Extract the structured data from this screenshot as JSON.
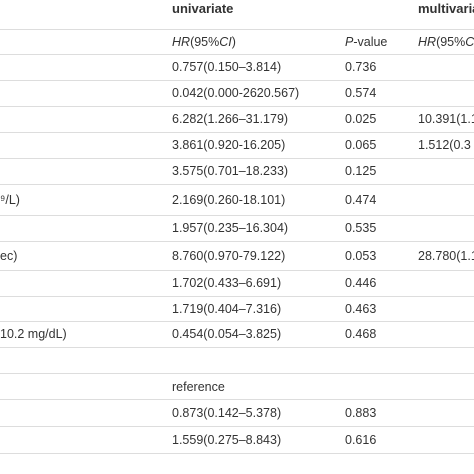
{
  "header": {
    "univariate": "univariate",
    "multivariate": "multivaria"
  },
  "subheader": {
    "hr_prefix": "HR",
    "hr_mid": "(95%",
    "hr_ci": "CI",
    "hr_end": ")",
    "p_italic": "P",
    "p_rest": "-value",
    "mhr_prefix": "HR",
    "mhr_mid": "(95%",
    "mhr_ci": "C"
  },
  "rows": [
    {
      "label": "",
      "hr": "0.757(0.150–3.814)",
      "p": "0.736",
      "mhr": ""
    },
    {
      "label": "",
      "hr": "0.042(0.000-2620.567)",
      "p": "0.574",
      "mhr": ""
    },
    {
      "label": "",
      "hr": "6.282(1.266–31.179)",
      "p": "0.025",
      "mhr": "10.391(1.1"
    },
    {
      "label": "",
      "hr": "3.861(0.920-16.205)",
      "p": "0.065",
      "mhr": "1.512(0.3"
    },
    {
      "label": "",
      "hr": "3.575(0.701–18.233)",
      "p": "0.125",
      "mhr": ""
    },
    {
      "label": "⁹/L)",
      "hr": "2.169(0.260-18.101)",
      "p": "0.474",
      "mhr": ""
    },
    {
      "label": "",
      "hr": "1.957(0.235–16.304)",
      "p": "0.535",
      "mhr": ""
    },
    {
      "label": "ec)",
      "hr": "8.760(0.970-79.122)",
      "p": "0.053",
      "mhr": "28.780(1.1"
    },
    {
      "label": "",
      "hr": "1.702(0.433–6.691)",
      "p": "0.446",
      "mhr": ""
    },
    {
      "label": "",
      "hr": "1.719(0.404–7.316)",
      "p": "0.463",
      "mhr": ""
    },
    {
      "label": " 10.2 mg/dL)",
      "hr": "0.454(0.054–3.825)",
      "p": "0.468",
      "mhr": ""
    },
    {
      "label": "",
      "hr": "",
      "p": "",
      "mhr": ""
    },
    {
      "label": "",
      "hr": "reference",
      "p": "",
      "mhr": ""
    },
    {
      "label": "",
      "hr": "0.873(0.142–5.378)",
      "p": "0.883",
      "mhr": ""
    },
    {
      "label": "",
      "hr": "1.559(0.275–8.843)",
      "p": "0.616",
      "mhr": ""
    }
  ]
}
